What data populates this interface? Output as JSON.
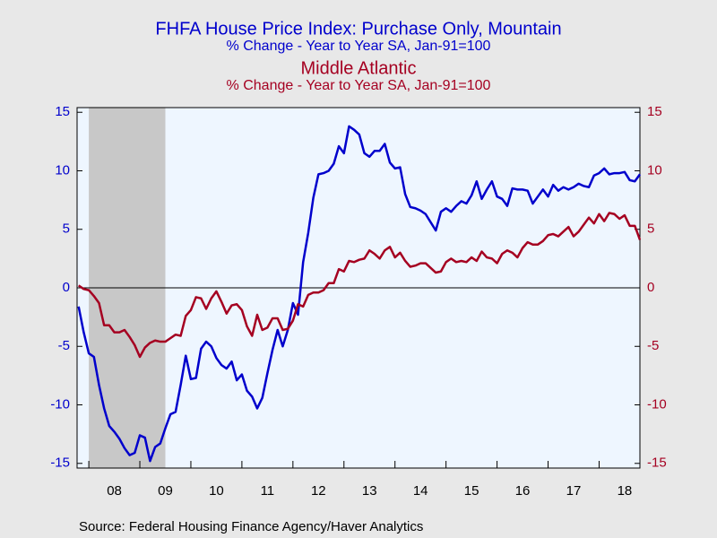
{
  "chart_data": {
    "type": "line",
    "title": "FHFA House Price Index: Purchase Only, Mountain",
    "subtitle": "% Change - Year to Year    SA, Jan-91=100",
    "title2": "Middle Atlantic",
    "subtitle2": "% Change - Year to Year    SA, Jan-91=100",
    "source": "Source:  Federal Housing Finance Agency/Haver Analytics",
    "xlim": [
      2007.77,
      2018.8
    ],
    "xticks": [
      {
        "value": 2008.5,
        "label": "08"
      },
      {
        "value": 2009.5,
        "label": "09"
      },
      {
        "value": 2010.5,
        "label": "10"
      },
      {
        "value": 2011.5,
        "label": "11"
      },
      {
        "value": 2012.5,
        "label": "12"
      },
      {
        "value": 2013.5,
        "label": "13"
      },
      {
        "value": 2014.5,
        "label": "14"
      },
      {
        "value": 2015.5,
        "label": "15"
      },
      {
        "value": 2016.5,
        "label": "16"
      },
      {
        "value": 2017.5,
        "label": "17"
      },
      {
        "value": 2018.5,
        "label": "18"
      }
    ],
    "ylim": [
      -15.4,
      15.4
    ],
    "yticks": [
      -15,
      -10,
      -5,
      0,
      5,
      10,
      15
    ],
    "y2lim": [
      -15.4,
      15.4
    ],
    "y2ticks": [
      -15,
      -10,
      -5,
      0,
      5,
      10,
      15
    ],
    "shading": [
      2008,
      2009.5
    ],
    "x": [
      2007.8,
      2007.9,
      2008.0,
      2008.1,
      2008.2,
      2008.3,
      2008.4,
      2008.5,
      2008.6,
      2008.7,
      2008.8,
      2008.9,
      2009.0,
      2009.1,
      2009.2,
      2009.3,
      2009.4,
      2009.5,
      2009.6,
      2009.7,
      2009.8,
      2009.9,
      2010.0,
      2010.1,
      2010.2,
      2010.3,
      2010.4,
      2010.5,
      2010.6,
      2010.7,
      2010.8,
      2010.9,
      2011.0,
      2011.1,
      2011.2,
      2011.3,
      2011.4,
      2011.5,
      2011.6,
      2011.7,
      2011.8,
      2011.9,
      2012.0,
      2012.1,
      2012.2,
      2012.3,
      2012.4,
      2012.5,
      2012.6,
      2012.7,
      2012.8,
      2012.9,
      2013.0,
      2013.1,
      2013.2,
      2013.3,
      2013.4,
      2013.5,
      2013.6,
      2013.7,
      2013.8,
      2013.9,
      2014.0,
      2014.1,
      2014.2,
      2014.3,
      2014.4,
      2014.5,
      2014.6,
      2014.7,
      2014.8,
      2014.9,
      2015.0,
      2015.1,
      2015.2,
      2015.3,
      2015.4,
      2015.5,
      2015.6,
      2015.7,
      2015.8,
      2015.9,
      2016.0,
      2016.1,
      2016.2,
      2016.3,
      2016.4,
      2016.5,
      2016.6,
      2016.7,
      2016.8,
      2016.9,
      2017.0,
      2017.1,
      2017.2,
      2017.3,
      2017.4,
      2017.5,
      2017.6,
      2017.7,
      2017.8,
      2017.9,
      2018.0,
      2018.1,
      2018.2,
      2018.3,
      2018.4,
      2018.5,
      2018.6,
      2018.7,
      2018.8
    ],
    "series": [
      {
        "color": "#0000cc",
        "values": [
          -1.6,
          -3.8,
          -5.6,
          -5.9,
          -8.3,
          -10.3,
          -11.8,
          -12.3,
          -12.9,
          -13.7,
          -14.3,
          -14.1,
          -12.6,
          -12.8,
          -14.8,
          -13.6,
          -13.3,
          -12,
          -10.8,
          -10.6,
          -8.3,
          -5.8,
          -7.8,
          -7.7,
          -5.2,
          -4.6,
          -5,
          -6,
          -6.6,
          -6.9,
          -6.3,
          -7.9,
          -7.4,
          -8.8,
          -9.3,
          -10.3,
          -9.4,
          -7.3,
          -5.3,
          -3.6,
          -5,
          -3.6,
          -1.3,
          -2.3,
          2.2,
          4.7,
          7.7,
          9.7,
          9.8,
          10,
          10.6,
          12.1,
          11.5,
          13.8,
          13.5,
          13.1,
          11.5,
          11.2,
          11.7,
          11.7,
          12.3,
          10.7,
          10.2,
          10.3,
          8,
          6.9,
          6.8,
          6.6,
          6.3,
          5.6,
          4.9,
          6.5,
          6.8,
          6.5,
          7.0,
          7.4,
          7.2,
          7.9,
          9.1,
          7.6,
          8.4,
          9.1,
          7.8,
          7.6,
          7,
          8.5,
          8.4,
          8.4,
          8.3,
          7.2,
          7.8,
          8.4,
          7.8,
          8.8,
          8.3,
          8.6,
          8.4,
          8.6,
          8.9,
          8.7,
          8.6,
          9.6,
          9.8,
          10.2,
          9.7,
          9.8,
          9.8,
          9.9,
          9.2,
          9.1,
          9.7
        ]
      },
      {
        "name": "Middle Atlantic",
        "color": "#a50021",
        "axis": "y2",
        "values": [
          0.2,
          -0.1,
          -0.2,
          -0.7,
          -1.3,
          -3.2,
          -3.2,
          -3.8,
          -3.8,
          -3.6,
          -4.2,
          -4.9,
          -5.9,
          -5.1,
          -4.7,
          -4.5,
          -4.6,
          -4.6,
          -4.3,
          -4,
          -4.1,
          -2.4,
          -1.9,
          -0.8,
          -0.9,
          -1.8,
          -0.9,
          -0.3,
          -1.2,
          -2.2,
          -1.5,
          -1.4,
          -1.9,
          -3.3,
          -4.1,
          -2.3,
          -3.6,
          -3.4,
          -2.6,
          -2.6,
          -3.6,
          -3.5,
          -2.8,
          -1.4,
          -1.6,
          -0.6,
          -0.4,
          -0.4,
          -0.2,
          0.4,
          0.4,
          1.6,
          1.4,
          2.3,
          2.2,
          2.4,
          2.5,
          3.2,
          2.9,
          2.5,
          3.2,
          3.5,
          2.6,
          3,
          2.3,
          1.8,
          1.9,
          2.1,
          2.1,
          1.7,
          1.3,
          1.4,
          2.2,
          2.5,
          2.2,
          2.3,
          2.2,
          2.6,
          2.3,
          3.1,
          2.6,
          2.5,
          2.1,
          2.9,
          3.2,
          3,
          2.6,
          3.4,
          3.9,
          3.7,
          3.7,
          4,
          4.5,
          4.6,
          4.4,
          4.8,
          5.2,
          4.4,
          4.8,
          5.4,
          6,
          5.5,
          6.3,
          5.7,
          6.4,
          6.3,
          5.9,
          6.2,
          5.3,
          5.3,
          4.1
        ]
      }
    ]
  }
}
